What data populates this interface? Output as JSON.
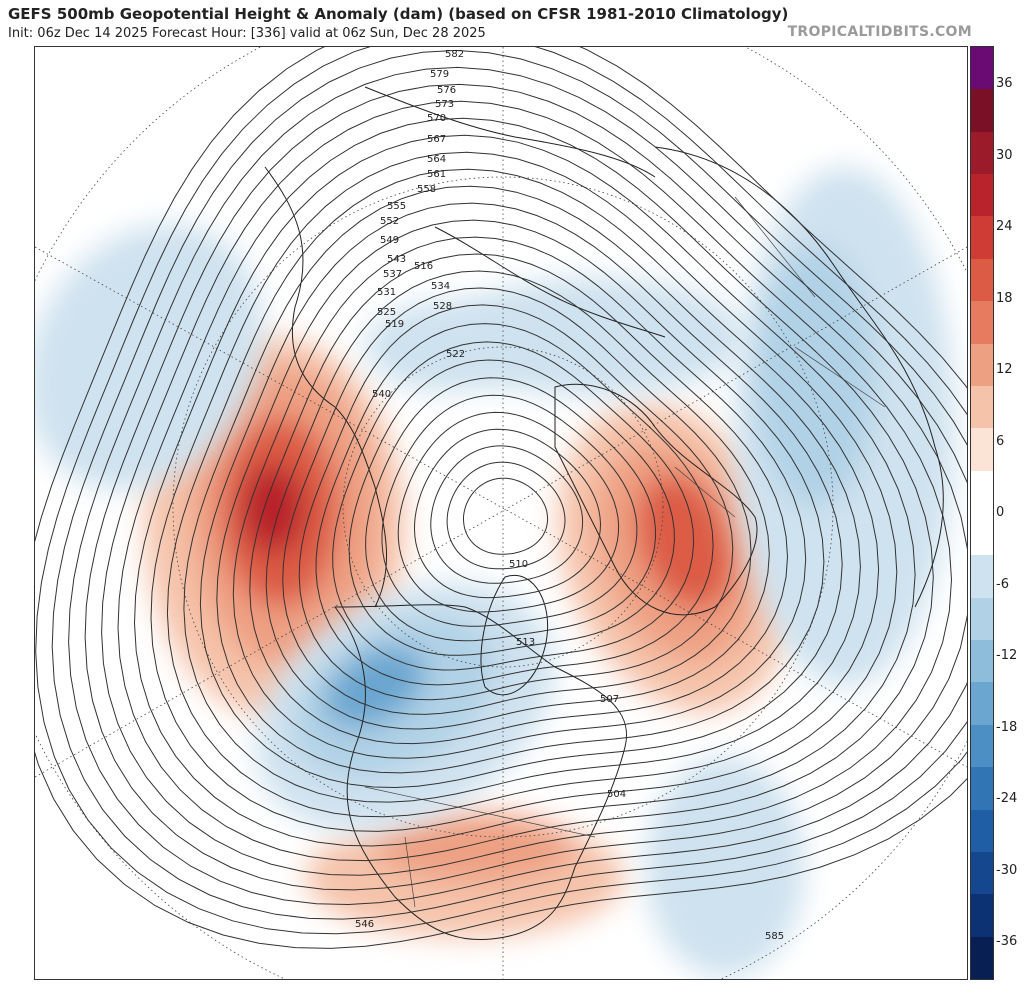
{
  "header": {
    "title": "GEFS 500mb Geopotential Height & Anomaly (dam) (based on CFSR 1981-2010 Climatology)",
    "subtitle": "Init: 06z Dec 14 2025   Forecast Hour: [336]   valid at 06z Sun, Dec 28 2025",
    "brand": "TROPICALTIDBITS.COM"
  },
  "colorbar": {
    "ticks": [
      "36",
      "30",
      "24",
      "18",
      "12",
      "6",
      "0",
      "-6",
      "-12",
      "-18",
      "-24",
      "-30",
      "-36"
    ],
    "colors": [
      "#6a0a73",
      "#7a1026",
      "#9b1b2a",
      "#b8232c",
      "#cf3b35",
      "#dc5b45",
      "#e67b5f",
      "#eea083",
      "#f5c3aa",
      "#fbe3d5",
      "#ffffff",
      "#ffffff",
      "#cfe2ef",
      "#b0d1e6",
      "#8dbddb",
      "#6aa6d0",
      "#4b8fc4",
      "#3175b5",
      "#1f5da4",
      "#15478e",
      "#0d3273",
      "#081f54"
    ]
  },
  "contour_labels": [
    "582",
    "579",
    "576",
    "573",
    "570",
    "567",
    "564",
    "561",
    "558",
    "555",
    "552",
    "549",
    "543",
    "537",
    "531",
    "525",
    "519",
    "516",
    "534",
    "528",
    "522",
    "540",
    "510",
    "513",
    "507",
    "504",
    "546",
    "585"
  ],
  "colors": {
    "positive": "#dc5b45",
    "negative": "#8dbddb",
    "contour": "#333333",
    "border": "#222222"
  }
}
